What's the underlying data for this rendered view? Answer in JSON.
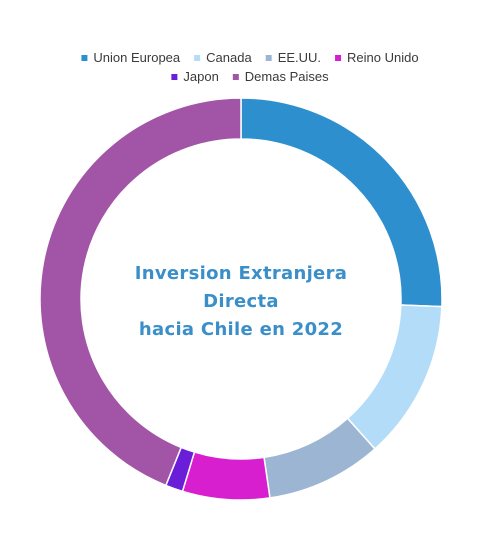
{
  "chart_data": {
    "type": "pie",
    "variant": "donut",
    "title_lines": [
      "Inversion Extranjera",
      "Directa",
      "hacia Chile en 2022"
    ],
    "legend_position": "top",
    "series": [
      {
        "name": "Union Europea",
        "value": 25.6,
        "color": "#2e8fce"
      },
      {
        "name": "Canada",
        "value": 12.8,
        "color": "#b3dcf8"
      },
      {
        "name": "EE.UU.",
        "value": 9.3,
        "color": "#9bb5d3"
      },
      {
        "name": "Reino Unido",
        "value": 7.0,
        "color": "#d81fd0"
      },
      {
        "name": "Japon",
        "value": 1.4,
        "color": "#6a1ed8"
      },
      {
        "name": "Demas Paises",
        "value": 43.9,
        "color": "#a254a6"
      }
    ]
  }
}
